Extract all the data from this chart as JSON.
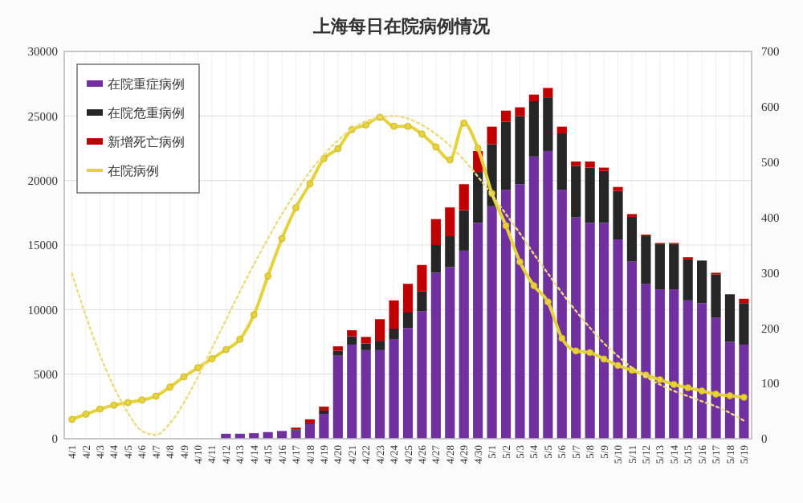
{
  "chart_data": {
    "type": "bar",
    "title": "上海每日在院病例情况",
    "stacked": true,
    "grid": true,
    "legend": "top left",
    "marker": "circle",
    "categories": [
      "4/1",
      "4/2",
      "4/3",
      "4/4",
      "4/5",
      "4/6",
      "4/7",
      "4/8",
      "4/9",
      "4/10",
      "4/11",
      "4/12",
      "4/13",
      "4/14",
      "4/15",
      "4/16",
      "4/17",
      "4/18",
      "4/19",
      "4/20",
      "4/21",
      "4/22",
      "4/23",
      "4/24",
      "4/25",
      "4/26",
      "4/27",
      "4/28",
      "4/29",
      "4/30",
      "5/1",
      "5/2",
      "5/3",
      "5/4",
      "5/5",
      "5/6",
      "5/7",
      "5/8",
      "5/9",
      "5/10",
      "5/11",
      "5/12",
      "5/13",
      "5/14",
      "5/15",
      "5/16",
      "5/17",
      "5/18",
      "5/19"
    ],
    "ylim": [
      0,
      30000
    ],
    "yticks": [
      0,
      5000,
      10000,
      15000,
      20000,
      25000,
      30000
    ],
    "y2lim": [
      0,
      700
    ],
    "y2ticks": [
      0,
      100,
      200,
      300,
      400,
      500,
      600,
      700
    ],
    "series": [
      {
        "name": "在院重症病例",
        "color": "#7030a0",
        "axis": "y2",
        "values": [
          null,
          null,
          null,
          null,
          null,
          null,
          null,
          null,
          null,
          null,
          null,
          9,
          9,
          10,
          12,
          14,
          15,
          26,
          45,
          150,
          170,
          160,
          160,
          180,
          200,
          230,
          300,
          310,
          340,
          390,
          420,
          450,
          460,
          510,
          520,
          450,
          400,
          390,
          390,
          360,
          320,
          280,
          270,
          270,
          250,
          245,
          219,
          175,
          170
        ]
      },
      {
        "name": "在院危重病例",
        "color": "#262626",
        "axis": "y2",
        "values": [
          null,
          null,
          null,
          null,
          null,
          null,
          null,
          null,
          null,
          null,
          null,
          0,
          0,
          0,
          0,
          0,
          2,
          2,
          6,
          9,
          15,
          12,
          17,
          19,
          28,
          36,
          50,
          56,
          73,
          92,
          112,
          123,
          123,
          100,
          97,
          102,
          93,
          100,
          94,
          88,
          81,
          86,
          82,
          82,
          74,
          77,
          78,
          86,
          75
        ]
      },
      {
        "name": "新增死亡病例",
        "color": "#c00000",
        "axis": "y2",
        "values": [
          null,
          null,
          null,
          null,
          null,
          null,
          null,
          null,
          null,
          null,
          null,
          0,
          0,
          0,
          0,
          0,
          3,
          7,
          7,
          8,
          11,
          12,
          39,
          51,
          52,
          48,
          47,
          52,
          47,
          38,
          32,
          20,
          16,
          12,
          17,
          12,
          8,
          11,
          6,
          7,
          5,
          3,
          2,
          2,
          4,
          null,
          3,
          null,
          8
        ]
      },
      {
        "name": "在院病例",
        "type": "line",
        "color": "#e6d23c",
        "values": [
          1500,
          1900,
          2300,
          2600,
          2800,
          3000,
          3300,
          4000,
          4800,
          5500,
          6200,
          6900,
          7700,
          9600,
          12600,
          15500,
          17900,
          19750,
          21700,
          22470,
          23950,
          24300,
          24900,
          24200,
          24200,
          23600,
          22600,
          21600,
          24450,
          22500,
          19000,
          16500,
          13700,
          11850,
          10600,
          7780,
          6800,
          6670,
          6170,
          5680,
          5300,
          4940,
          4570,
          4200,
          3950,
          3700,
          3460,
          3330,
          3210
        ]
      },
      {
        "type": "line",
        "color": "#ecdc80",
        "line_style": "dotted",
        "marker": "none",
        "values": [
          12800,
          9500,
          6500,
          4000,
          2000,
          600,
          300,
          1200,
          2800,
          4800,
          7000,
          9200,
          11400,
          13500,
          15500,
          17400,
          19100,
          20700,
          22000,
          23100,
          24000,
          24600,
          24900,
          25000,
          24800,
          24300,
          23600,
          22700,
          21600,
          20300,
          18900,
          17400,
          15900,
          14300,
          12800,
          11300,
          9900,
          8600,
          7400,
          6400,
          5500,
          4800,
          4200,
          3700,
          3300,
          2900,
          2500,
          2000,
          1400
        ]
      }
    ]
  }
}
